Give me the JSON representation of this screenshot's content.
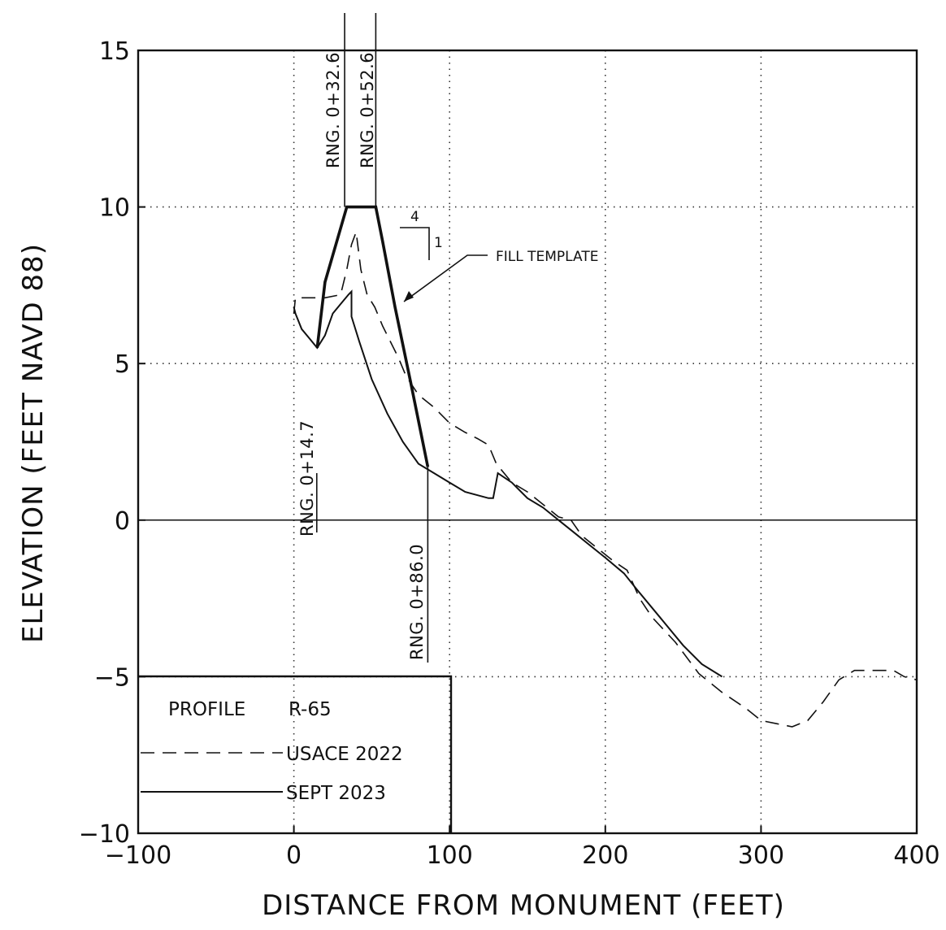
{
  "chart_data": {
    "type": "line",
    "title": "",
    "xlabel": "DISTANCE FROM MONUMENT (FEET)",
    "ylabel": "ELEVATION (FEET NAVD 88)",
    "xlim": [
      -100,
      400
    ],
    "ylim": [
      -10,
      15
    ],
    "x_ticks": [
      -100,
      0,
      100,
      200,
      300,
      400
    ],
    "x_tick_labels": [
      "−100",
      "0",
      "100",
      "200",
      "300",
      "400"
    ],
    "y_ticks": [
      15,
      10,
      5,
      0,
      -5,
      -10
    ],
    "y_tick_labels": [
      "15",
      "10",
      "5",
      "0",
      "−5",
      "−10"
    ],
    "grid": "dotted",
    "legend": {
      "placement": "bottom-left",
      "title": "PROFILE",
      "profile_id": "R-65",
      "entries": [
        {
          "label": "USACE 2022",
          "style": "dashed"
        },
        {
          "label": "SEPT 2023",
          "style": "solid"
        }
      ]
    },
    "series": [
      {
        "name": "USACE 2022",
        "style": "dashed",
        "points": [
          [
            0,
            6.6
          ],
          [
            1,
            7.1
          ],
          [
            20,
            7.1
          ],
          [
            30,
            7.2
          ],
          [
            34,
            8.0
          ],
          [
            37,
            8.8
          ],
          [
            40,
            9.2
          ],
          [
            43,
            8.0
          ],
          [
            47,
            7.2
          ],
          [
            52,
            6.8
          ],
          [
            57,
            6.2
          ],
          [
            63,
            5.6
          ],
          [
            67,
            5.2
          ],
          [
            72,
            4.6
          ],
          [
            80,
            4.0
          ],
          [
            90,
            3.6
          ],
          [
            100,
            3.1
          ],
          [
            110,
            2.8
          ],
          [
            118,
            2.6
          ],
          [
            125,
            2.4
          ],
          [
            130,
            1.8
          ],
          [
            140,
            1.2
          ],
          [
            150,
            0.9
          ],
          [
            160,
            0.5
          ],
          [
            170,
            0.1
          ],
          [
            178,
            0.0
          ],
          [
            185,
            -0.5
          ],
          [
            195,
            -0.9
          ],
          [
            205,
            -1.3
          ],
          [
            214,
            -1.6
          ],
          [
            222,
            -2.5
          ],
          [
            230,
            -3.1
          ],
          [
            245,
            -3.9
          ],
          [
            260,
            -4.9
          ],
          [
            275,
            -5.5
          ],
          [
            290,
            -6.0
          ],
          [
            300,
            -6.4
          ],
          [
            310,
            -6.5
          ],
          [
            320,
            -6.6
          ],
          [
            330,
            -6.4
          ],
          [
            340,
            -5.8
          ],
          [
            350,
            -5.1
          ],
          [
            360,
            -4.8
          ],
          [
            375,
            -4.8
          ],
          [
            385,
            -4.8
          ],
          [
            392,
            -5.0
          ],
          [
            400,
            -5.1
          ]
        ]
      },
      {
        "name": "SEPT 2023",
        "style": "solid",
        "points": [
          [
            0,
            6.8
          ],
          [
            1,
            6.6
          ],
          [
            5,
            6.1
          ],
          [
            10,
            5.8
          ],
          [
            15,
            5.5
          ],
          [
            20,
            5.9
          ],
          [
            25,
            6.6
          ],
          [
            30,
            6.9
          ],
          [
            35,
            7.2
          ],
          [
            37,
            7.3
          ],
          [
            37,
            6.5
          ],
          [
            42,
            5.7
          ],
          [
            50,
            4.5
          ],
          [
            60,
            3.4
          ],
          [
            70,
            2.5
          ],
          [
            80,
            1.8
          ],
          [
            90,
            1.5
          ],
          [
            100,
            1.2
          ],
          [
            110,
            0.9
          ],
          [
            125,
            0.7
          ],
          [
            128,
            0.7
          ],
          [
            131,
            1.5
          ],
          [
            140,
            1.2
          ],
          [
            150,
            0.7
          ],
          [
            160,
            0.4
          ],
          [
            170,
            0.0
          ],
          [
            180,
            -0.4
          ],
          [
            190,
            -0.8
          ],
          [
            200,
            -1.2
          ],
          [
            212,
            -1.7
          ],
          [
            220,
            -2.2
          ],
          [
            235,
            -3.1
          ],
          [
            250,
            -4.0
          ],
          [
            262,
            -4.6
          ],
          [
            275,
            -5.0
          ]
        ]
      },
      {
        "name": "FILL TEMPLATE",
        "style": "thick",
        "points": [
          [
            15,
            5.5
          ],
          [
            20,
            7.6
          ],
          [
            34,
            10.0
          ],
          [
            52.6,
            10.0
          ],
          [
            57,
            8.9
          ],
          [
            65,
            6.8
          ],
          [
            75,
            4.4
          ],
          [
            86,
            1.7
          ]
        ]
      }
    ],
    "ranges": [
      {
        "label": "RNG. 0+14.7",
        "x": 14.7
      },
      {
        "label": "RNG. 0+32.6",
        "x": 32.6
      },
      {
        "label": "RNG. 0+52.6",
        "x": 52.6
      },
      {
        "label": "RNG. 0+86.0",
        "x": 86.0
      }
    ],
    "annotations": {
      "fill_template": "FILL TEMPLATE",
      "slope_run": "4",
      "slope_rise": "1"
    }
  }
}
